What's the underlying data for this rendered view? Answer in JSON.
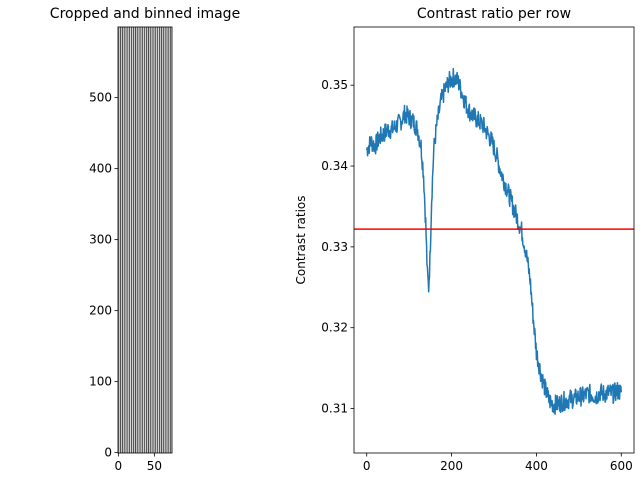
{
  "chart_data": [
    {
      "type": "image",
      "title": "Cropped and binned image",
      "xlabel": "",
      "ylabel": "",
      "xlim": [
        -0.5,
        74.5
      ],
      "ylim": [
        599.5,
        -0.5
      ],
      "x_ticks": [
        0,
        50
      ],
      "y_ticks": [
        0,
        100,
        200,
        300,
        400,
        500
      ],
      "stripe_period": 3,
      "stripe_phase": 0,
      "colormap": "gray"
    },
    {
      "type": "line",
      "title": "Contrast ratio per row",
      "xlabel": "",
      "ylabel": "Contrast ratios",
      "xlim": [
        -30,
        630
      ],
      "ylim": [
        0.3045,
        0.3572
      ],
      "x_ticks": [
        0,
        200,
        400,
        600
      ],
      "y_ticks": [
        0.31,
        0.32,
        0.33,
        0.34,
        0.35
      ],
      "y_tick_labels": [
        "0.31",
        "0.32",
        "0.33",
        "0.34",
        "0.35"
      ],
      "series": [
        {
          "color": "#1f77b4",
          "points": [
            [
              0,
              0.342
            ],
            [
              10,
              0.343
            ],
            [
              20,
              0.3425
            ],
            [
              30,
              0.3435
            ],
            [
              40,
              0.344
            ],
            [
              50,
              0.3445
            ],
            [
              60,
              0.3445
            ],
            [
              70,
              0.345
            ],
            [
              80,
              0.3455
            ],
            [
              90,
              0.3465
            ],
            [
              100,
              0.346
            ],
            [
              110,
              0.3455
            ],
            [
              120,
              0.3445
            ],
            [
              128,
              0.3425
            ],
            [
              134,
              0.339
            ],
            [
              139,
              0.333
            ],
            [
              143,
              0.3265
            ],
            [
              146,
              0.325
            ],
            [
              149,
              0.3285
            ],
            [
              153,
              0.336
            ],
            [
              158,
              0.342
            ],
            [
              165,
              0.345
            ],
            [
              175,
              0.348
            ],
            [
              185,
              0.3495
            ],
            [
              195,
              0.3505
            ],
            [
              205,
              0.351
            ],
            [
              215,
              0.3505
            ],
            [
              225,
              0.349
            ],
            [
              235,
              0.3475
            ],
            [
              245,
              0.3465
            ],
            [
              255,
              0.346
            ],
            [
              265,
              0.3455
            ],
            [
              275,
              0.345
            ],
            [
              285,
              0.344
            ],
            [
              295,
              0.343
            ],
            [
              305,
              0.3415
            ],
            [
              315,
              0.3395
            ],
            [
              325,
              0.338
            ],
            [
              335,
              0.3365
            ],
            [
              345,
              0.335
            ],
            [
              355,
              0.3335
            ],
            [
              365,
              0.332
            ],
            [
              375,
              0.3295
            ],
            [
              385,
              0.326
            ],
            [
              392,
              0.3215
            ],
            [
              400,
              0.317
            ],
            [
              410,
              0.3145
            ],
            [
              420,
              0.3125
            ],
            [
              430,
              0.311
            ],
            [
              440,
              0.3105
            ],
            [
              450,
              0.3105
            ],
            [
              460,
              0.3108
            ],
            [
              470,
              0.311
            ],
            [
              480,
              0.3112
            ],
            [
              490,
              0.3112
            ],
            [
              500,
              0.3115
            ],
            [
              510,
              0.3115
            ],
            [
              520,
              0.3118
            ],
            [
              530,
              0.3118
            ],
            [
              540,
              0.3115
            ],
            [
              550,
              0.312
            ],
            [
              560,
              0.3118
            ],
            [
              570,
              0.312
            ],
            [
              580,
              0.3118
            ],
            [
              590,
              0.3122
            ],
            [
              600,
              0.312
            ]
          ],
          "noise_amplitude": 0.0012
        }
      ],
      "hlines": [
        {
          "y": 0.3322,
          "color": "#ff0000"
        }
      ],
      "grid": false,
      "legend": "none"
    }
  ]
}
